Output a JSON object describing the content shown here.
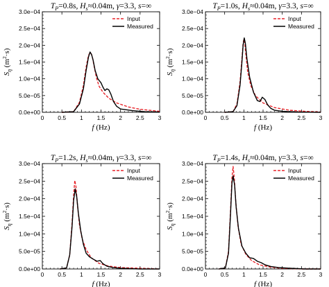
{
  "figure": {
    "colors": {
      "input": "#e8242a",
      "measured": "#000000",
      "axis": "#000000",
      "background": "#ffffff"
    }
  },
  "chart_data": [
    {
      "type": "line",
      "panel": "top-left",
      "title": {
        "tp": "0.8s",
        "hs": "0.04m",
        "gamma": "3.3",
        "s": "∞"
      },
      "xlabel": {
        "symbol": "f",
        "unit": "(Hz)"
      },
      "ylabel": {
        "symbol": "S",
        "sub": "η",
        "unit": "(m",
        "sup": "2",
        "unit_end": "·s)"
      },
      "xlim": [
        0,
        3
      ],
      "ylim": [
        0,
        0.0003
      ],
      "xticks": [
        "0",
        "0.5",
        "1",
        "1.5",
        "2",
        "2.5",
        "3"
      ],
      "yticks": [
        "0.0e+00",
        "5.0e−05",
        "1.0e−04",
        "1.5e−04",
        "2.0e−04",
        "2.5e−04",
        "3.0e−04"
      ],
      "grid": false,
      "legend": {
        "placement": "top-right",
        "entries": [
          "Input",
          "Measured"
        ]
      },
      "series": [
        {
          "name": "Input",
          "style": "dashed",
          "color": "#e8242a",
          "x": [
            0.5,
            0.8,
            0.95,
            1.05,
            1.12,
            1.18,
            1.22,
            1.25,
            1.28,
            1.32,
            1.38,
            1.45,
            1.55,
            1.7,
            1.9,
            2.2,
            2.5,
            3.0
          ],
          "y": [
            0,
            2e-06,
            3e-05,
            8e-05,
            0.000135,
            0.00017,
            0.000178,
            0.000175,
            0.000165,
            0.00014,
            0.000105,
            7.8e-05,
            6e-05,
            4.2e-05,
            2.8e-05,
            1.6e-05,
            9e-06,
            3e-06
          ]
        },
        {
          "name": "Measured",
          "style": "solid",
          "color": "#000000",
          "x": [
            0.5,
            0.8,
            0.95,
            1.05,
            1.12,
            1.18,
            1.22,
            1.26,
            1.3,
            1.35,
            1.42,
            1.5,
            1.55,
            1.6,
            1.65,
            1.7,
            1.75,
            1.82,
            1.9,
            2.0,
            2.3,
            2.6,
            3.0
          ],
          "y": [
            0,
            2e-06,
            2.5e-05,
            7e-05,
            0.000125,
            0.000165,
            0.00018,
            0.000172,
            0.000155,
            0.000125,
            0.0001,
            8.8e-05,
            7.5e-05,
            6.5e-05,
            7e-05,
            6.7e-05,
            5.5e-05,
            3.2e-05,
            1.8e-05,
            1e-05,
            5e-06,
            2e-06,
            1e-06
          ]
        }
      ]
    },
    {
      "type": "line",
      "panel": "top-right",
      "title": {
        "tp": "1.0s",
        "hs": "0.04m",
        "gamma": "3.3",
        "s": "∞"
      },
      "xlabel": {
        "symbol": "f",
        "unit": "(Hz)"
      },
      "ylabel": {
        "symbol": "S",
        "sub": "η",
        "unit": "(m",
        "sup": "2",
        "unit_end": "·s)"
      },
      "xlim": [
        0,
        3
      ],
      "ylim": [
        0,
        0.0003
      ],
      "xticks": [
        "0",
        "0.5",
        "1",
        "1.5",
        "2",
        "2.5",
        "3"
      ],
      "yticks": [
        "0.0e+00",
        "5.0e−05",
        "1.0e−04",
        "1.5e−04",
        "2.0e−04",
        "2.5e−04",
        "3.0e−04"
      ],
      "grid": false,
      "legend": {
        "placement": "top-right",
        "entries": [
          "Input",
          "Measured"
        ]
      },
      "series": [
        {
          "name": "Input",
          "style": "dashed",
          "color": "#e8242a",
          "x": [
            0.5,
            0.72,
            0.82,
            0.9,
            0.95,
            0.98,
            1.0,
            1.02,
            1.05,
            1.1,
            1.18,
            1.3,
            1.5,
            1.8,
            2.2,
            2.6,
            3.0
          ],
          "y": [
            0,
            2e-06,
            2.5e-05,
            9e-05,
            0.00016,
            0.000205,
            0.000218,
            0.00021,
            0.000175,
            0.00012,
            8e-05,
            5e-05,
            2.8e-05,
            1.4e-05,
            6e-06,
            3e-06,
            1e-06
          ]
        },
        {
          "name": "Measured",
          "style": "solid",
          "color": "#000000",
          "x": [
            0.5,
            0.72,
            0.82,
            0.9,
            0.95,
            0.98,
            1.01,
            1.04,
            1.08,
            1.15,
            1.25,
            1.35,
            1.42,
            1.48,
            1.55,
            1.62,
            1.7,
            1.8,
            2.0,
            2.4,
            3.0
          ],
          "y": [
            0,
            2e-06,
            2e-05,
            8e-05,
            0.00015,
            0.0002,
            0.000222,
            0.000205,
            0.00016,
            0.000105,
            6e-05,
            3.5e-05,
            3.2e-05,
            4.5e-05,
            3.8e-05,
            2.2e-05,
            1.2e-05,
            6e-06,
            3e-06,
            1e-06,
            0
          ]
        }
      ]
    },
    {
      "type": "line",
      "panel": "bottom-left",
      "title": {
        "tp": "1.2s",
        "hs": "0.04m",
        "gamma": "3.3",
        "s": "∞"
      },
      "xlabel": {
        "symbol": "f",
        "unit": "(Hz)"
      },
      "ylabel": {
        "symbol": "S",
        "sub": "η",
        "unit": "(m",
        "sup": "2",
        "unit_end": "·s)"
      },
      "xlim": [
        0,
        3
      ],
      "ylim": [
        0,
        0.0003
      ],
      "xticks": [
        "0",
        "0.5",
        "1",
        "1.5",
        "2",
        "2.5",
        "3"
      ],
      "yticks": [
        "0.0e+00",
        "5.0e−05",
        "1.0e−04",
        "1.5e−04",
        "2.0e−04",
        "2.5e−04",
        "3.0e−04"
      ],
      "grid": false,
      "legend": {
        "placement": "top-right",
        "entries": [
          "Input",
          "Measured"
        ]
      },
      "series": [
        {
          "name": "Input",
          "style": "dashed",
          "color": "#e8242a",
          "x": [
            0.45,
            0.62,
            0.7,
            0.76,
            0.8,
            0.83,
            0.86,
            0.9,
            0.95,
            1.02,
            1.12,
            1.25,
            1.45,
            1.7,
            2.0,
            2.5,
            3.0
          ],
          "y": [
            0,
            3e-06,
            4e-05,
            0.00013,
            0.00021,
            0.000252,
            0.000235,
            0.00018,
            0.000125,
            8.5e-05,
            5.5e-05,
            3.2e-05,
            1.6e-05,
            8e-06,
            4e-06,
            2e-06,
            0
          ]
        },
        {
          "name": "Measured",
          "style": "solid",
          "color": "#000000",
          "x": [
            0.45,
            0.62,
            0.7,
            0.76,
            0.8,
            0.84,
            0.88,
            0.92,
            0.98,
            1.05,
            1.12,
            1.2,
            1.3,
            1.4,
            1.48,
            1.55,
            1.65,
            1.8,
            2.0,
            2.5,
            3.0
          ],
          "y": [
            0,
            3e-06,
            4e-05,
            0.00012,
            0.000195,
            0.000228,
            0.000205,
            0.00016,
            0.00011,
            7e-05,
            4.5e-05,
            3.5e-05,
            2.8e-05,
            2.2e-05,
            2.4e-05,
            1.5e-05,
            8e-06,
            4e-06,
            2e-06,
            0,
            0
          ]
        }
      ]
    },
    {
      "type": "line",
      "panel": "bottom-right",
      "title": {
        "tp": "1.4s",
        "hs": "0.04m",
        "gamma": "3.3",
        "s": "∞"
      },
      "xlabel": {
        "symbol": "f",
        "unit": "(Hz)"
      },
      "ylabel": {
        "symbol": "S",
        "sub": "η",
        "unit": "(m",
        "sup": "2",
        "unit_end": "·s)"
      },
      "xlim": [
        0,
        3
      ],
      "ylim": [
        0,
        0.0003
      ],
      "xticks": [
        "0",
        "0.5",
        "1",
        "1.5",
        "2",
        "2.5",
        "3"
      ],
      "yticks": [
        "0.0e+00",
        "5.0e−05",
        "1.0e−04",
        "1.5e−04",
        "2.0e−04",
        "2.5e−04",
        "3.0e−04"
      ],
      "grid": false,
      "legend": {
        "placement": "top-right",
        "entries": [
          "Input",
          "Measured"
        ]
      },
      "series": [
        {
          "name": "Input",
          "style": "dashed",
          "color": "#e8242a",
          "x": [
            0.35,
            0.52,
            0.6,
            0.65,
            0.69,
            0.72,
            0.75,
            0.79,
            0.85,
            0.93,
            1.05,
            1.2,
            1.4,
            1.7,
            2.0,
            2.5,
            3.0
          ],
          "y": [
            0,
            3e-06,
            5e-05,
            0.00016,
            0.00026,
            0.000292,
            0.00026,
            0.00019,
            0.00012,
            7e-05,
            4.2e-05,
            2.4e-05,
            1.2e-05,
            5e-06,
            2e-06,
            0,
            0
          ]
        },
        {
          "name": "Measured",
          "style": "solid",
          "color": "#000000",
          "x": [
            0.35,
            0.52,
            0.6,
            0.65,
            0.69,
            0.72,
            0.76,
            0.8,
            0.86,
            0.95,
            1.05,
            1.15,
            1.25,
            1.35,
            1.45,
            1.55,
            1.7,
            1.9,
            2.2,
            2.6,
            3.0
          ],
          "y": [
            0,
            3e-06,
            4.5e-05,
            0.00015,
            0.000245,
            0.000265,
            0.000238,
            0.000175,
            0.000115,
            6.5e-05,
            4.5e-05,
            3.2e-05,
            3e-05,
            2.2e-05,
            1.8e-05,
            1.2e-05,
            7e-06,
            4e-06,
            2e-06,
            0,
            0
          ]
        }
      ]
    }
  ]
}
